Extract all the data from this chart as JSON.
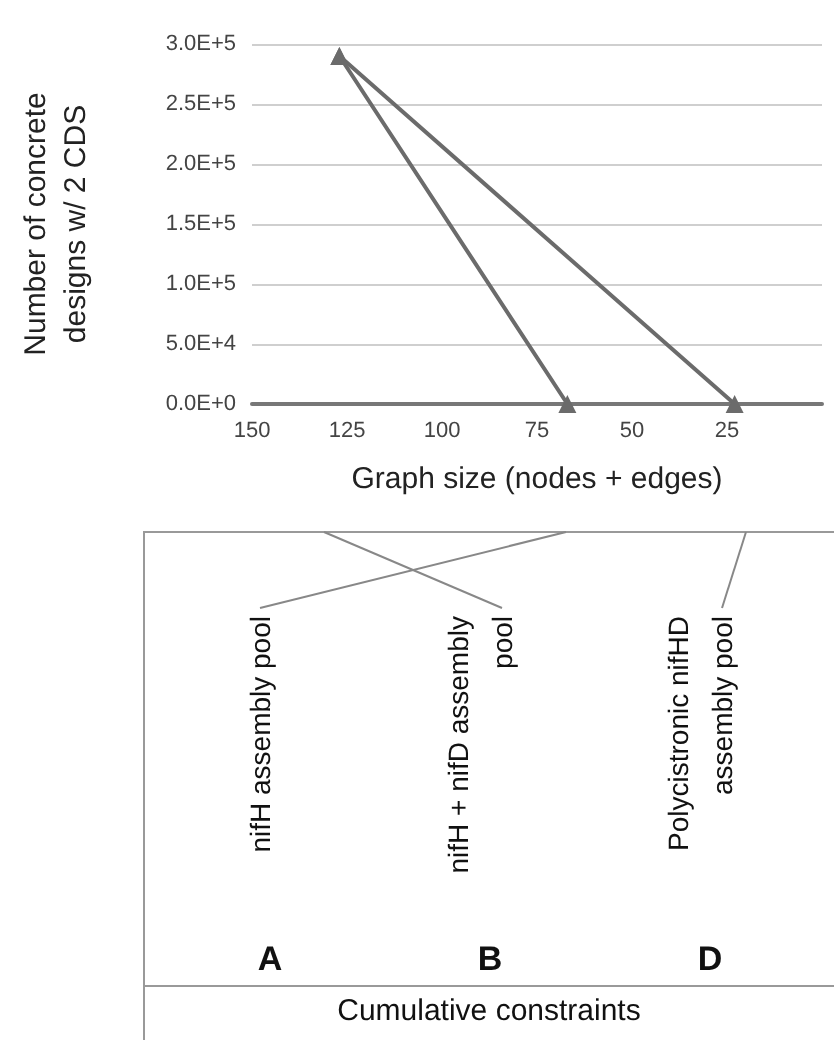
{
  "chart_data": {
    "type": "line",
    "ylabel": "Number of concrete designs w/ 2 CDS",
    "xlabel": "Graph size (nodes + edges)",
    "xlim": [
      150,
      0
    ],
    "xticks": [
      150,
      125,
      100,
      75,
      50,
      25
    ],
    "ylim": [
      0,
      300000
    ],
    "yticks": [
      {
        "value": 0,
        "label": "0.0E+0"
      },
      {
        "value": 50000,
        "label": "5.0E+4"
      },
      {
        "value": 100000,
        "label": "1.0E+5"
      },
      {
        "value": 150000,
        "label": "1.5E+5"
      },
      {
        "value": 200000,
        "label": "2.0E+5"
      },
      {
        "value": 250000,
        "label": "2.5E+5"
      },
      {
        "value": 300000,
        "label": "3.0E+5"
      }
    ],
    "series": [
      {
        "color": "#6b6b6b",
        "x": [
          127,
          67
        ],
        "values": [
          290000,
          0
        ]
      },
      {
        "color": "#6b6b6b",
        "x": [
          127,
          23
        ],
        "values": [
          290000,
          0
        ]
      }
    ],
    "grid": "y",
    "marker": "triangle",
    "line_style": "solid",
    "annotations": [
      "nifH assembly pool",
      "nifH + nifD assembly pool",
      "Polycistronic nifHD assembly pool",
      "A",
      "B",
      "D",
      "Cumulative constraints"
    ]
  }
}
